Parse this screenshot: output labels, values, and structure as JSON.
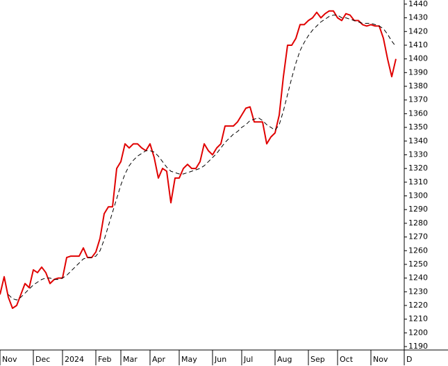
{
  "chart_data": {
    "type": "line",
    "categories": [
      "Nov",
      null,
      null,
      null,
      null,
      null,
      null,
      null,
      "Dec",
      null,
      null,
      null,
      null,
      null,
      null,
      "2024",
      null,
      null,
      null,
      null,
      null,
      null,
      null,
      "Feb",
      null,
      null,
      null,
      null,
      null,
      "Mar",
      null,
      null,
      null,
      null,
      null,
      null,
      "Apr",
      null,
      null,
      null,
      null,
      null,
      null,
      "May",
      null,
      null,
      null,
      null,
      null,
      null,
      null,
      "Jun",
      null,
      null,
      null,
      null,
      null,
      null,
      "Jul",
      null,
      null,
      null,
      null,
      null,
      null,
      null,
      "Aug",
      null,
      null,
      null,
      null,
      null,
      null,
      null,
      "Sep",
      null,
      null,
      null,
      null,
      null,
      null,
      "Oct",
      null,
      null,
      null,
      null,
      null,
      null,
      null,
      "Nov",
      null,
      null,
      null,
      null,
      null,
      null,
      null,
      "D"
    ],
    "series": [
      {
        "color": "#e00000",
        "style": "solid",
        "values": [
          1228,
          1241,
          1226,
          1218,
          1220,
          1228,
          1236,
          1233,
          1246,
          1244,
          1248,
          1244,
          1236,
          1239,
          1240,
          1240,
          1255,
          1256,
          1256,
          1256,
          1262,
          1255,
          1255,
          1259,
          1269,
          1287,
          1292,
          1292,
          1320,
          1325,
          1338,
          1335,
          1338,
          1338,
          1335,
          1333,
          1338,
          1328,
          1313,
          1320,
          1318,
          1295,
          1313,
          1313,
          1320,
          1323,
          1320,
          1320,
          1325,
          1338,
          1333,
          1330,
          1335,
          1338,
          1351,
          1351,
          1351,
          1354,
          1359,
          1364,
          1365,
          1354,
          1354,
          1354,
          1338,
          1343,
          1346,
          1359,
          1387,
          1410,
          1410,
          1415,
          1425,
          1425,
          1428,
          1430,
          1434,
          1430,
          1433,
          1435,
          1435,
          1430,
          1428,
          1433,
          1432,
          1428,
          1428,
          1425,
          1424,
          1425,
          1424,
          1424,
          1415,
          1400,
          1387,
          1400,
          null,
          null
        ]
      },
      {
        "color": "#000000",
        "style": "dashed",
        "values": [
          null,
          null,
          1228,
          1225,
          1224,
          1226,
          1229,
          1232,
          1235,
          1237,
          1239,
          1240,
          1240,
          1239,
          1239,
          1240,
          1242,
          1245,
          1248,
          1251,
          1254,
          1255,
          1255,
          1256,
          1260,
          1268,
          1278,
          1288,
          1298,
          1308,
          1316,
          1322,
          1326,
          1329,
          1331,
          1333,
          1333,
          1332,
          1329,
          1325,
          1321,
          1318,
          1317,
          1316,
          1316,
          1317,
          1318,
          1319,
          1320,
          1322,
          1325,
          1328,
          1331,
          1335,
          1339,
          1342,
          1345,
          1347,
          1350,
          1352,
          1355,
          1356,
          1357,
          1355,
          1352,
          1350,
          1348,
          1352,
          1362,
          1374,
          1386,
          1397,
          1406,
          1412,
          1417,
          1421,
          1424,
          1427,
          1429,
          1431,
          1432,
          1432,
          1430,
          1430,
          1429,
          1428,
          1427,
          1426,
          1426,
          1426,
          1425,
          1424,
          1422,
          1418,
          1413,
          1409,
          null,
          null
        ]
      }
    ],
    "ylim": [
      1187.5,
      1443
    ],
    "yticks": [
      1190,
      1200,
      1210,
      1220,
      1230,
      1240,
      1250,
      1260,
      1270,
      1280,
      1290,
      1300,
      1310,
      1320,
      1330,
      1340,
      1350,
      1360,
      1370,
      1380,
      1390,
      1400,
      1410,
      1420,
      1430,
      1440
    ],
    "y_axis_side": "right"
  }
}
